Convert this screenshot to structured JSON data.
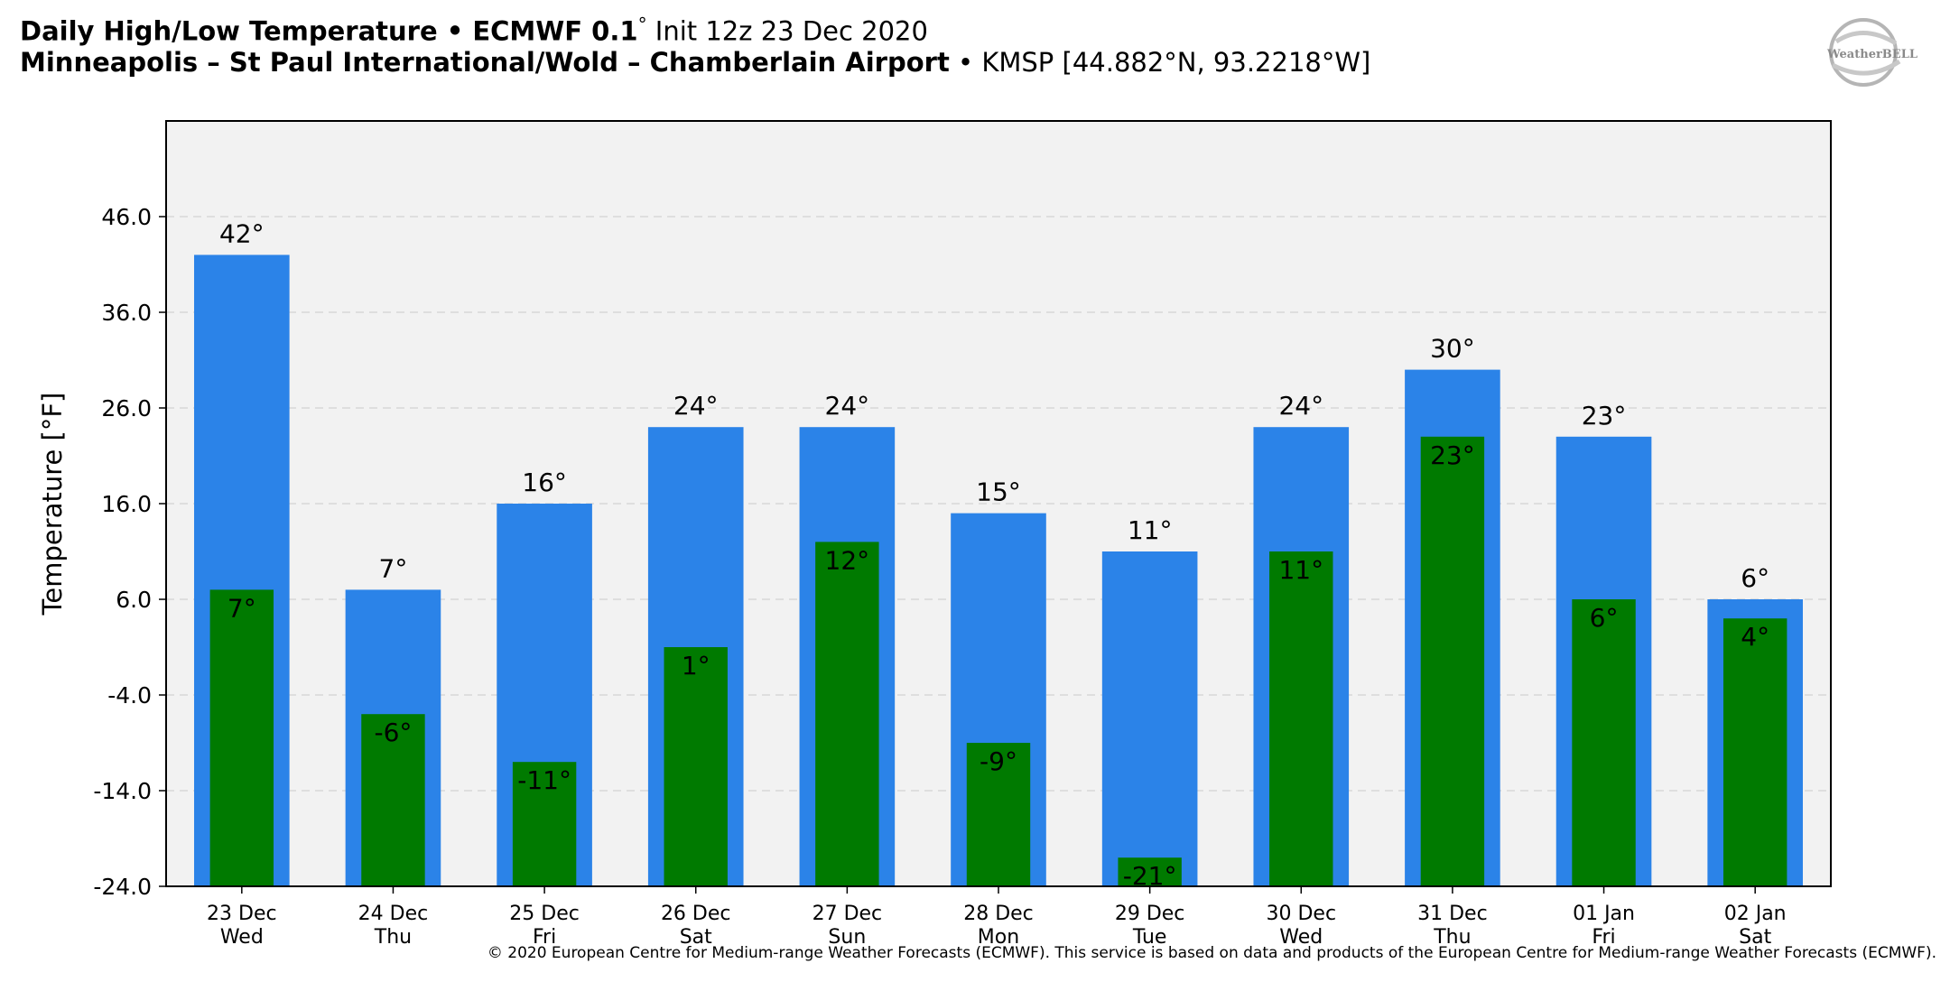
{
  "header": {
    "line1_bold": "Daily High/Low Temperature • ECMWF 0.1",
    "line1_deg": "°",
    "line1_rest": " Init 12z 23 Dec 2020",
    "line2_bold": "Minneapolis – St Paul International/Wold – Chamberlain Airport",
    "line2_rest": " • KMSP [44.882°N, 93.2218°W]"
  },
  "logo": {
    "text": "WeatherBELL",
    "icon": "weatherbell-swirl-logo"
  },
  "copyright": "© 2020 European Centre for Medium-range Weather Forecasts (ECMWF). This service is based on data and products of the European Centre for Medium-range Weather Forecasts (ECMWF).",
  "colors": {
    "high": "#2b83e8",
    "low": "#007a00",
    "plot_bg": "#f2f2f2",
    "grid": "#d8d8d8"
  },
  "chart_data": {
    "type": "bar",
    "ylabel": "Temperature [°F]",
    "ylim": [
      -24,
      56
    ],
    "yticks": [
      -24,
      -14,
      -4,
      6,
      16,
      26,
      36,
      46
    ],
    "ytick_labels": [
      "-24.0",
      "-14.0",
      "-4.0",
      "6.0",
      "16.0",
      "26.0",
      "36.0",
      "46.0"
    ],
    "grid": "horizontal dashed",
    "categories": [
      [
        "23 Dec",
        "Wed"
      ],
      [
        "24 Dec",
        "Thu"
      ],
      [
        "25 Dec",
        "Fri"
      ],
      [
        "26 Dec",
        "Sat"
      ],
      [
        "27 Dec",
        "Sun"
      ],
      [
        "28 Dec",
        "Mon"
      ],
      [
        "29 Dec",
        "Tue"
      ],
      [
        "30 Dec",
        "Wed"
      ],
      [
        "31 Dec",
        "Thu"
      ],
      [
        "01 Jan",
        "Fri"
      ],
      [
        "02 Jan",
        "Sat"
      ]
    ],
    "series": [
      {
        "values": [
          42,
          7,
          16,
          24,
          24,
          15,
          11,
          24,
          30,
          23,
          6
        ],
        "labels": [
          "42°",
          "7°",
          "16°",
          "24°",
          "24°",
          "15°",
          "11°",
          "24°",
          "30°",
          "23°",
          "6°"
        ]
      },
      {
        "values": [
          7,
          -6,
          -11,
          1,
          12,
          -9,
          -21,
          11,
          23,
          6,
          4
        ],
        "labels": [
          "7°",
          "-6°",
          "-11°",
          "1°",
          "12°",
          "-9°",
          "-21°",
          "11°",
          "23°",
          "6°",
          "4°"
        ]
      }
    ]
  }
}
